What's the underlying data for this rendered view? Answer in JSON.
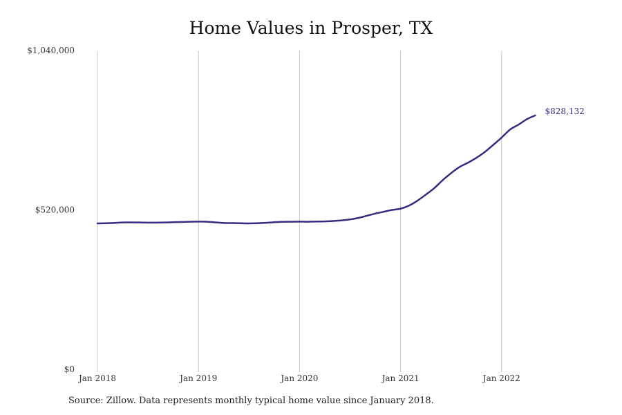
{
  "colors": {
    "line": "#332c7f",
    "grid": "#c8c8c8",
    "axis": "#888888",
    "text": "#333333"
  },
  "chart_data": {
    "type": "line",
    "title": "Home Values in Prosper, TX",
    "xlabel": "",
    "ylabel": "",
    "ylim": [
      0,
      1040000
    ],
    "y_ticks": [
      0,
      520000,
      1040000
    ],
    "y_tick_labels": [
      "$0",
      "$520,000",
      "$1,040,000"
    ],
    "x_ticks": [
      "2018-01",
      "2019-01",
      "2020-01",
      "2021-01",
      "2022-01"
    ],
    "x_tick_labels": [
      "Jan 2018",
      "Jan 2019",
      "Jan 2020",
      "Jan 2021",
      "Jan 2022"
    ],
    "grid": "vertical",
    "series": [
      {
        "x": [
          "2018-01",
          "2018-02",
          "2018-03",
          "2018-04",
          "2018-05",
          "2018-06",
          "2018-07",
          "2018-08",
          "2018-09",
          "2018-10",
          "2018-11",
          "2018-12",
          "2019-01",
          "2019-02",
          "2019-03",
          "2019-04",
          "2019-05",
          "2019-06",
          "2019-07",
          "2019-08",
          "2019-09",
          "2019-10",
          "2019-11",
          "2019-12",
          "2020-01",
          "2020-02",
          "2020-03",
          "2020-04",
          "2020-05",
          "2020-06",
          "2020-07",
          "2020-08",
          "2020-09",
          "2020-10",
          "2020-11",
          "2020-12",
          "2021-01",
          "2021-02",
          "2021-03",
          "2021-04",
          "2021-05",
          "2021-06",
          "2021-07",
          "2021-08",
          "2021-09",
          "2021-10",
          "2021-11",
          "2021-12",
          "2022-01",
          "2022-02",
          "2022-03",
          "2022-04",
          "2022-05"
        ],
        "values": [
          476000,
          476500,
          477500,
          479000,
          479500,
          479000,
          478500,
          478500,
          479000,
          480000,
          480500,
          481500,
          482000,
          481500,
          479500,
          477500,
          477000,
          476500,
          476000,
          476500,
          478000,
          480000,
          481000,
          481500,
          482000,
          481500,
          482000,
          482500,
          484000,
          486000,
          489000,
          494000,
          501000,
          508000,
          514000,
          520000,
          524000,
          534000,
          550000,
          570000,
          591000,
          617000,
          640000,
          660000,
          674000,
          690000,
          709000,
          732000,
          756000,
          782000,
          798000,
          816000,
          828132
        ]
      }
    ],
    "end_label": "$828,132"
  },
  "footer": {
    "source": "Source: Zillow. Data represents monthly typical home value since January 2018."
  }
}
